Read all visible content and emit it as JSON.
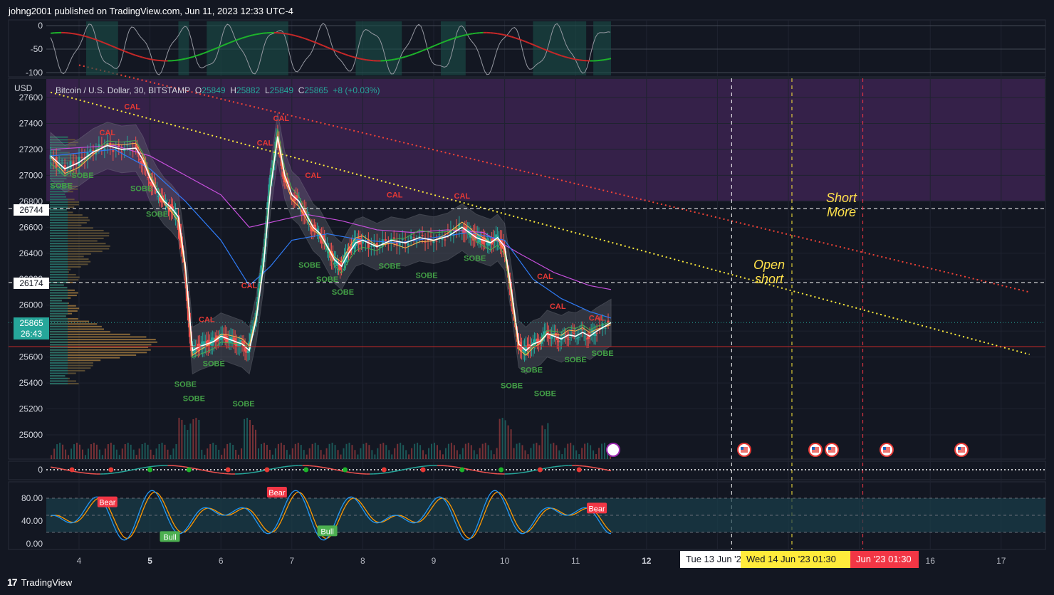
{
  "header": {
    "published": "johng2001 published on TradingView.com, Jun 11, 2023 12:33 UTC-4"
  },
  "footer": {
    "brand": "TradingView",
    "logo": "tradingview-logo"
  },
  "symbol": {
    "currency": "USD",
    "name": "Bitcoin / U.S. Dollar, 30, BITSTAMP",
    "o_label": "O",
    "o": "25849",
    "h_label": "H",
    "h": "25882",
    "l_label": "L",
    "l": "25849",
    "c_label": "C",
    "c": "25865",
    "change": "+8 (+0.03%)"
  },
  "price_labels": {
    "level_high": "26744",
    "level_low": "26174",
    "last_price": "25865",
    "countdown": "26:43"
  },
  "date_chips": [
    "Tue 13 Jun '2",
    "Wed 14 Jun '23   01:30",
    "Jun '23   01:30"
  ],
  "annotations": {
    "short_more": [
      "Short",
      "More"
    ],
    "open_short": [
      "Open",
      "short"
    ]
  },
  "colors": {
    "background": "#131722",
    "up": "#26a69a",
    "down": "#ef5350",
    "yellow_trend": "#ffeb3b",
    "red_trend": "#f44336",
    "purple_zone": "#3c2350",
    "volume_profile": "#a27a3e",
    "chip_yellow": "#ffeb3b",
    "chip_red": "#f23645"
  },
  "chart_data": {
    "type": "line",
    "main": {
      "yticks": [
        27600,
        27400,
        27200,
        27000,
        26800,
        26600,
        26400,
        26200,
        26000,
        25800,
        25600,
        25400,
        25200,
        25000
      ],
      "ylim": [
        24850,
        27650
      ],
      "xticks": [
        "4",
        "5",
        "6",
        "7",
        "8",
        "9",
        "10",
        "11",
        "12",
        "13",
        "14",
        "15",
        "16",
        "17"
      ],
      "price_series": [
        [
          3.6,
          27150
        ],
        [
          3.8,
          27050
        ],
        [
          4.0,
          27100
        ],
        [
          4.2,
          27180
        ],
        [
          4.4,
          27230
        ],
        [
          4.6,
          27200
        ],
        [
          4.8,
          27210
        ],
        [
          4.9,
          27120
        ],
        [
          5.0,
          26980
        ],
        [
          5.1,
          26880
        ],
        [
          5.2,
          26800
        ],
        [
          5.3,
          26750
        ],
        [
          5.4,
          26680
        ],
        [
          5.5,
          26300
        ],
        [
          5.6,
          25650
        ],
        [
          5.7,
          25680
        ],
        [
          5.8,
          25700
        ],
        [
          5.9,
          25720
        ],
        [
          6.0,
          25760
        ],
        [
          6.1,
          25740
        ],
        [
          6.2,
          25720
        ],
        [
          6.3,
          25700
        ],
        [
          6.4,
          25650
        ],
        [
          6.5,
          25900
        ],
        [
          6.6,
          26300
        ],
        [
          6.7,
          26900
        ],
        [
          6.8,
          27300
        ],
        [
          6.9,
          27000
        ],
        [
          7.0,
          26850
        ],
        [
          7.1,
          26800
        ],
        [
          7.2,
          26700
        ],
        [
          7.3,
          26600
        ],
        [
          7.4,
          26550
        ],
        [
          7.5,
          26450
        ],
        [
          7.6,
          26350
        ],
        [
          7.7,
          26300
        ],
        [
          7.8,
          26400
        ],
        [
          7.9,
          26480
        ],
        [
          8.0,
          26500
        ],
        [
          8.2,
          26450
        ],
        [
          8.4,
          26500
        ],
        [
          8.6,
          26480
        ],
        [
          8.8,
          26520
        ],
        [
          9.0,
          26500
        ],
        [
          9.2,
          26530
        ],
        [
          9.4,
          26600
        ],
        [
          9.5,
          26560
        ],
        [
          9.6,
          26520
        ],
        [
          9.7,
          26500
        ],
        [
          9.8,
          26480
        ],
        [
          9.9,
          26520
        ],
        [
          10.0,
          26450
        ],
        [
          10.1,
          26100
        ],
        [
          10.2,
          25700
        ],
        [
          10.3,
          25650
        ],
        [
          10.4,
          25700
        ],
        [
          10.5,
          25720
        ],
        [
          10.6,
          25780
        ],
        [
          10.7,
          25760
        ],
        [
          10.8,
          25740
        ],
        [
          10.9,
          25770
        ],
        [
          11.0,
          25760
        ],
        [
          11.1,
          25790
        ],
        [
          11.2,
          25760
        ],
        [
          11.3,
          25800
        ],
        [
          11.5,
          25865
        ]
      ],
      "ma_blue": [
        [
          3.6,
          27150
        ],
        [
          4.5,
          27200
        ],
        [
          5.0,
          27050
        ],
        [
          5.5,
          26800
        ],
        [
          6.0,
          26500
        ],
        [
          6.4,
          26150
        ],
        [
          6.7,
          26300
        ],
        [
          7.0,
          26500
        ],
        [
          7.5,
          26550
        ],
        [
          8.0,
          26500
        ],
        [
          8.5,
          26480
        ],
        [
          9.0,
          26520
        ],
        [
          9.5,
          26560
        ],
        [
          10.0,
          26500
        ],
        [
          10.4,
          26200
        ],
        [
          10.8,
          26050
        ],
        [
          11.2,
          25950
        ],
        [
          11.5,
          25900
        ]
      ],
      "ma_purple": [
        [
          3.6,
          27200
        ],
        [
          4.5,
          27230
        ],
        [
          5.0,
          27150
        ],
        [
          5.5,
          27000
        ],
        [
          6.0,
          26850
        ],
        [
          6.4,
          26600
        ],
        [
          6.8,
          26650
        ],
        [
          7.2,
          26700
        ],
        [
          7.7,
          26650
        ],
        [
          8.2,
          26580
        ],
        [
          8.7,
          26560
        ],
        [
          9.2,
          26580
        ],
        [
          9.7,
          26560
        ],
        [
          10.2,
          26400
        ],
        [
          10.7,
          26250
        ],
        [
          11.2,
          26150
        ],
        [
          11.5,
          26120
        ]
      ],
      "trend_yellow": {
        "from": [
          3.6,
          27640
        ],
        "to": [
          17.4,
          25620
        ]
      },
      "trend_red": {
        "from": [
          4.0,
          27850
        ],
        "to": [
          17.4,
          26100
        ]
      },
      "horizontal_levels": [
        26744,
        26174,
        25865,
        25680
      ],
      "markers": [
        {
          "t": "CAL",
          "x": 4.75,
          "y": 27510,
          "kind": "sell"
        },
        {
          "t": "CAL",
          "x": 4.4,
          "y": 27310,
          "kind": "sell"
        },
        {
          "t": "CAL",
          "x": 6.85,
          "y": 27420,
          "kind": "sell"
        },
        {
          "t": "CAL",
          "x": 6.62,
          "y": 27230,
          "kind": "sell"
        },
        {
          "t": "CAL",
          "x": 7.3,
          "y": 26980,
          "kind": "sell"
        },
        {
          "t": "CAL",
          "x": 8.45,
          "y": 26830,
          "kind": "sell"
        },
        {
          "t": "CAL",
          "x": 9.4,
          "y": 26820,
          "kind": "sell"
        },
        {
          "t": "CAL",
          "x": 10.57,
          "y": 26200,
          "kind": "sell"
        },
        {
          "t": "CAL",
          "x": 10.75,
          "y": 25970,
          "kind": "sell"
        },
        {
          "t": "CAL",
          "x": 11.3,
          "y": 25880,
          "kind": "sell"
        },
        {
          "t": "CAL",
          "x": 5.8,
          "y": 25870,
          "kind": "sell"
        },
        {
          "t": "CAL",
          "x": 6.4,
          "y": 26130,
          "kind": "sell"
        },
        {
          "t": "SOBE",
          "x": 3.75,
          "y": 26900,
          "kind": "buy"
        },
        {
          "t": "SOBE",
          "x": 4.05,
          "y": 26980,
          "kind": "buy"
        },
        {
          "t": "SOBE",
          "x": 4.88,
          "y": 26880,
          "kind": "buy"
        },
        {
          "t": "SOBE",
          "x": 5.1,
          "y": 26680,
          "kind": "buy"
        },
        {
          "t": "SOBE",
          "x": 5.5,
          "y": 25370,
          "kind": "buy"
        },
        {
          "t": "SOBE",
          "x": 5.62,
          "y": 25260,
          "kind": "buy"
        },
        {
          "t": "SOBE",
          "x": 5.9,
          "y": 25530,
          "kind": "buy"
        },
        {
          "t": "SOBE",
          "x": 6.32,
          "y": 25220,
          "kind": "buy"
        },
        {
          "t": "SOBE",
          "x": 7.25,
          "y": 26290,
          "kind": "buy"
        },
        {
          "t": "SOBE",
          "x": 7.5,
          "y": 26180,
          "kind": "buy"
        },
        {
          "t": "SOBE",
          "x": 7.72,
          "y": 26080,
          "kind": "buy"
        },
        {
          "t": "SOBE",
          "x": 8.38,
          "y": 26280,
          "kind": "buy"
        },
        {
          "t": "SOBE",
          "x": 8.9,
          "y": 26210,
          "kind": "buy"
        },
        {
          "t": "SOBE",
          "x": 9.58,
          "y": 26340,
          "kind": "buy"
        },
        {
          "t": "SOBE",
          "x": 10.1,
          "y": 25360,
          "kind": "buy"
        },
        {
          "t": "SOBE",
          "x": 10.38,
          "y": 25480,
          "kind": "buy"
        },
        {
          "t": "SOBE",
          "x": 10.57,
          "y": 25300,
          "kind": "buy"
        },
        {
          "t": "SOBE",
          "x": 11.0,
          "y": 25560,
          "kind": "buy"
        },
        {
          "t": "SOBE",
          "x": 11.38,
          "y": 25610,
          "kind": "buy"
        }
      ]
    },
    "top_oscillator": {
      "yticks": [
        0,
        -50,
        -100
      ],
      "ylim": [
        -110,
        8
      ]
    },
    "mid_oscillator": {
      "yticks": [
        0
      ]
    },
    "stoch": {
      "yticks": [
        "80.00",
        "40.00",
        "0.00"
      ],
      "ylim": [
        -5,
        105
      ],
      "band": [
        20,
        80
      ],
      "labels": [
        {
          "t": "Bear",
          "x": 4.4,
          "y": 73,
          "kind": "bear"
        },
        {
          "t": "Bear",
          "x": 6.79,
          "y": 90,
          "kind": "bear"
        },
        {
          "t": "Bear",
          "x": 11.3,
          "y": 62,
          "kind": "bear"
        },
        {
          "t": "Bull",
          "x": 5.28,
          "y": 12,
          "kind": "bull"
        },
        {
          "t": "Bull",
          "x": 7.5,
          "y": 22,
          "kind": "bull"
        }
      ]
    }
  }
}
